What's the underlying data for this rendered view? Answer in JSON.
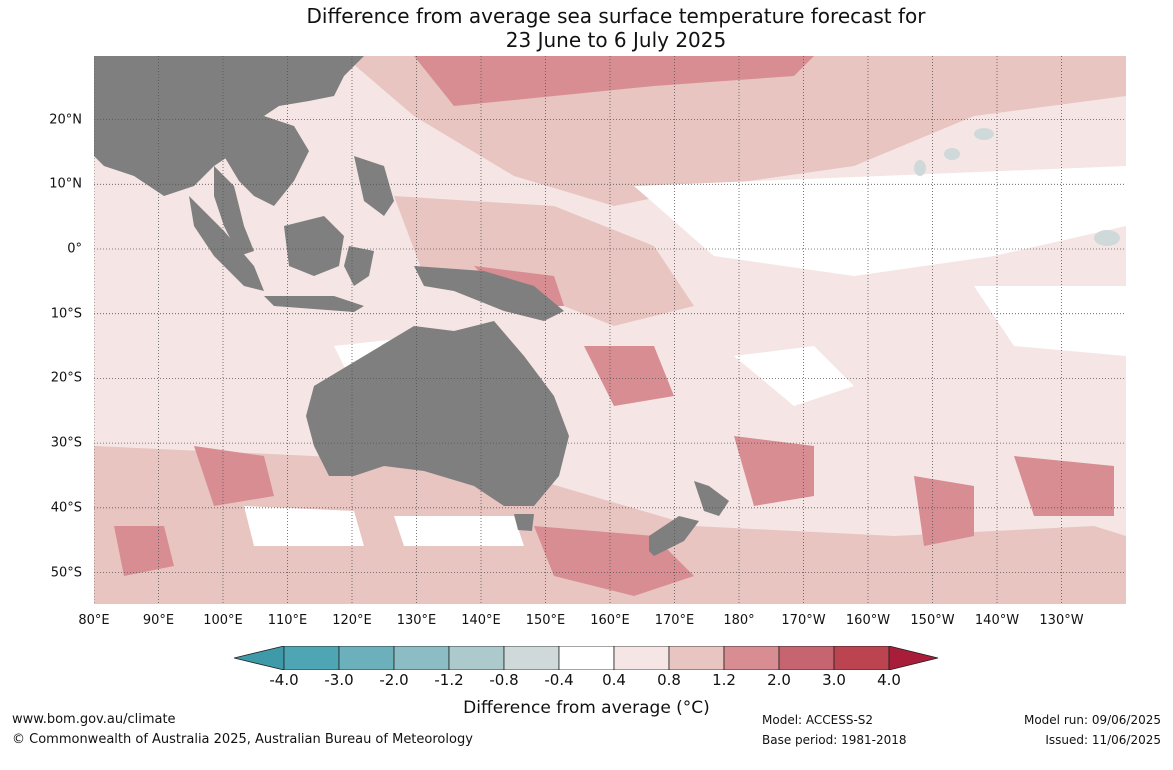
{
  "title": {
    "line1": "Difference from average sea surface temperature forecast for",
    "line2": "23 June to 6 July 2025"
  },
  "map": {
    "lat_labels": [
      "20°N",
      "10°N",
      "0°",
      "10°S",
      "20°S",
      "30°S",
      "40°S",
      "50°S"
    ],
    "lon_labels": [
      "80°E",
      "90°E",
      "100°E",
      "110°E",
      "120°E",
      "130°E",
      "140°E",
      "150°E",
      "160°E",
      "170°E",
      "180°",
      "170°W",
      "160°W",
      "150°W",
      "140°W",
      "130°W"
    ],
    "land_color": "#7f7f7f",
    "grid": "dotted"
  },
  "colorbar": {
    "labels": [
      "-4.0",
      "-3.0",
      "-2.0",
      "-1.2",
      "-0.8",
      "-0.4",
      "0.4",
      "0.8",
      "1.2",
      "2.0",
      "3.0",
      "4.0"
    ],
    "colors": [
      "#3e9aa8",
      "#4ea6b4",
      "#6cb0bc",
      "#8cbcc4",
      "#acc9cb",
      "#cfd9d9",
      "#ffffff",
      "#f5e6e5",
      "#e8c5c1",
      "#d78d92",
      "#c66570",
      "#bb4450",
      "#a81d3a"
    ],
    "title": "Difference from average (°C)"
  },
  "footer": {
    "website": "www.bom.gov.au/climate",
    "copyright": "© Commonwealth of Australia 2025, Australian Bureau of Meteorology",
    "model": "Model: ACCESS-S2",
    "base_period": "Base period: 1981-2018",
    "model_run": "Model run: 09/06/2025",
    "issued": "Issued: 11/06/2025"
  }
}
